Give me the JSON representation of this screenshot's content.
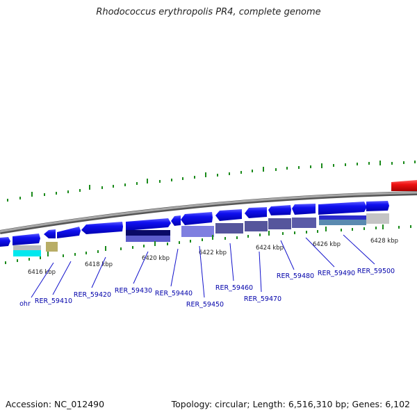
{
  "title": "Rhodococcus erythropolis PR4, complete genome",
  "footer": {
    "accession": "Accession: NC_012490",
    "topology": "Topology: circular; Length: 6,516,310 bp; Genes: 6,102"
  },
  "colors": {
    "backbone": "#8c8c8c",
    "gene_forward": "#0a0af0",
    "tick": "#1a8a1a",
    "label": "#0000aa",
    "highlight": "#ee1111"
  },
  "scale_labels": [
    "6416 kbp",
    "6418 kbp",
    "6420 kbp",
    "6422 kbp",
    "6424 kbp",
    "6426 kbp",
    "6428 kbp"
  ],
  "gene_labels": [
    "ohr",
    "RER_59410",
    "RER_59420",
    "RER_59430",
    "RER_59440",
    "RER_59450",
    "RER_59460",
    "RER_59470",
    "RER_59480",
    "RER_59490",
    "RER_59500"
  ]
}
